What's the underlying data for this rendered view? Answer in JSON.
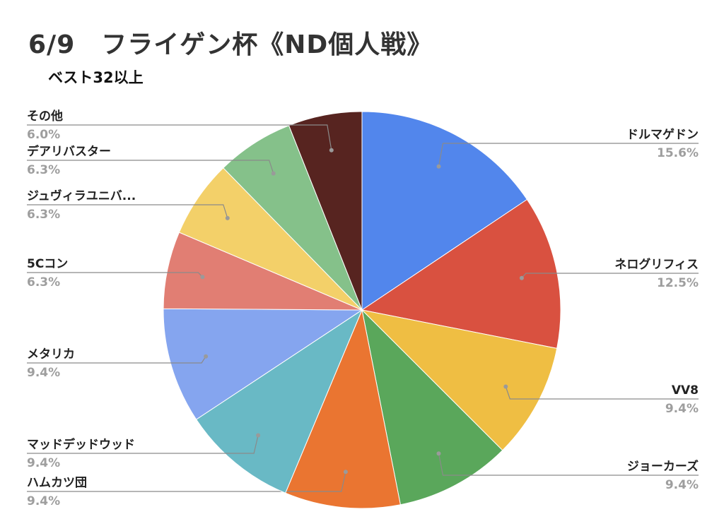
{
  "chart_data": {
    "type": "pie",
    "title": "6/9　フライゲン杯《ND個人戦》",
    "subtitle": "ベスト32以上",
    "slices": [
      {
        "label": "ドルマゲドン",
        "value": 15.6,
        "pct_label": "15.6%",
        "color": "#5286ec"
      },
      {
        "label": "ネログリフィス",
        "value": 12.5,
        "pct_label": "12.5%",
        "color": "#d95140"
      },
      {
        "label": "VV8",
        "value": 9.4,
        "pct_label": "9.4%",
        "color": "#efbe43"
      },
      {
        "label": "ジョーカーズ",
        "value": 9.4,
        "pct_label": "9.4%",
        "color": "#5aa75b"
      },
      {
        "label": "ハムカツ団",
        "value": 9.4,
        "pct_label": "9.4%",
        "color": "#ea7531"
      },
      {
        "label": "マッドデッドウッド",
        "value": 9.4,
        "pct_label": "9.4%",
        "color": "#69b9c5"
      },
      {
        "label": "メタリカ",
        "value": 9.4,
        "pct_label": "9.4%",
        "color": "#85a5ef"
      },
      {
        "label": "5Cコン",
        "value": 6.3,
        "pct_label": "6.3%",
        "color": "#e17e73"
      },
      {
        "label": "ジュヴィラユニバ...",
        "value": 6.3,
        "pct_label": "6.3%",
        "color": "#f3d069"
      },
      {
        "label": "デアリバスター",
        "value": 6.3,
        "pct_label": "6.3%",
        "color": "#85c18a"
      },
      {
        "label": "その他",
        "value": 6.0,
        "pct_label": "6.0%",
        "color": "#572420"
      }
    ]
  }
}
